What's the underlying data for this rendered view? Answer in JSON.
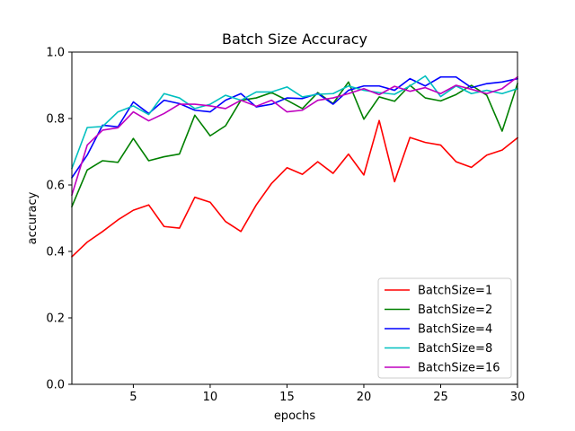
{
  "chart_data": {
    "type": "line",
    "title": "Batch Size Accuracy",
    "xlabel": "epochs",
    "ylabel": "accuracy",
    "xlim": [
      1,
      30
    ],
    "ylim": [
      0.0,
      1.0
    ],
    "xticks": [
      5,
      10,
      15,
      20,
      25,
      30
    ],
    "yticks": [
      0.0,
      0.2,
      0.4,
      0.6,
      0.8,
      1.0
    ],
    "xtick_labels": [
      "5",
      "10",
      "15",
      "20",
      "25",
      "30"
    ],
    "ytick_labels": [
      "0.0",
      "0.2",
      "0.4",
      "0.6",
      "0.8",
      "1.0"
    ],
    "grid": false,
    "legend_position": "lower-right",
    "x": [
      1,
      2,
      3,
      4,
      5,
      6,
      7,
      8,
      9,
      10,
      11,
      12,
      13,
      14,
      15,
      16,
      17,
      18,
      19,
      20,
      21,
      22,
      23,
      24,
      25,
      26,
      27,
      28,
      29,
      30
    ],
    "series": [
      {
        "name": "BatchSize=1",
        "color": "#ff0000",
        "values": [
          0.384,
          0.428,
          0.46,
          0.495,
          0.524,
          0.54,
          0.475,
          0.47,
          0.563,
          0.548,
          0.49,
          0.46,
          0.54,
          0.605,
          0.652,
          0.632,
          0.67,
          0.635,
          0.693,
          0.63,
          0.794,
          0.61,
          0.743,
          0.728,
          0.72,
          0.67,
          0.653,
          0.69,
          0.705,
          0.742
        ]
      },
      {
        "name": "BatchSize=2",
        "color": "#008000",
        "values": [
          0.535,
          0.645,
          0.673,
          0.668,
          0.74,
          0.673,
          0.685,
          0.693,
          0.81,
          0.748,
          0.778,
          0.855,
          0.862,
          0.878,
          0.855,
          0.83,
          0.878,
          0.845,
          0.91,
          0.798,
          0.865,
          0.852,
          0.9,
          0.862,
          0.853,
          0.872,
          0.9,
          0.87,
          0.762,
          0.905
        ]
      },
      {
        "name": "BatchSize=4",
        "color": "#0000ff",
        "values": [
          0.622,
          0.69,
          0.78,
          0.775,
          0.85,
          0.815,
          0.855,
          0.845,
          0.825,
          0.82,
          0.855,
          0.875,
          0.835,
          0.843,
          0.862,
          0.86,
          0.875,
          0.843,
          0.885,
          0.898,
          0.898,
          0.885,
          0.92,
          0.898,
          0.925,
          0.925,
          0.893,
          0.905,
          0.91,
          0.92
        ]
      },
      {
        "name": "BatchSize=8",
        "color": "#00bfbf",
        "values": [
          0.65,
          0.773,
          0.776,
          0.82,
          0.838,
          0.812,
          0.875,
          0.862,
          0.83,
          0.843,
          0.87,
          0.855,
          0.88,
          0.88,
          0.895,
          0.865,
          0.873,
          0.875,
          0.898,
          0.885,
          0.878,
          0.873,
          0.898,
          0.928,
          0.866,
          0.898,
          0.875,
          0.885,
          0.875,
          0.89
        ]
      },
      {
        "name": "BatchSize=16",
        "color": "#bf00bf",
        "values": [
          0.57,
          0.72,
          0.765,
          0.772,
          0.82,
          0.793,
          0.815,
          0.843,
          0.843,
          0.838,
          0.83,
          0.855,
          0.837,
          0.855,
          0.82,
          0.825,
          0.855,
          0.862,
          0.875,
          0.89,
          0.872,
          0.897,
          0.882,
          0.893,
          0.875,
          0.9,
          0.888,
          0.875,
          0.89,
          0.925
        ]
      }
    ]
  }
}
